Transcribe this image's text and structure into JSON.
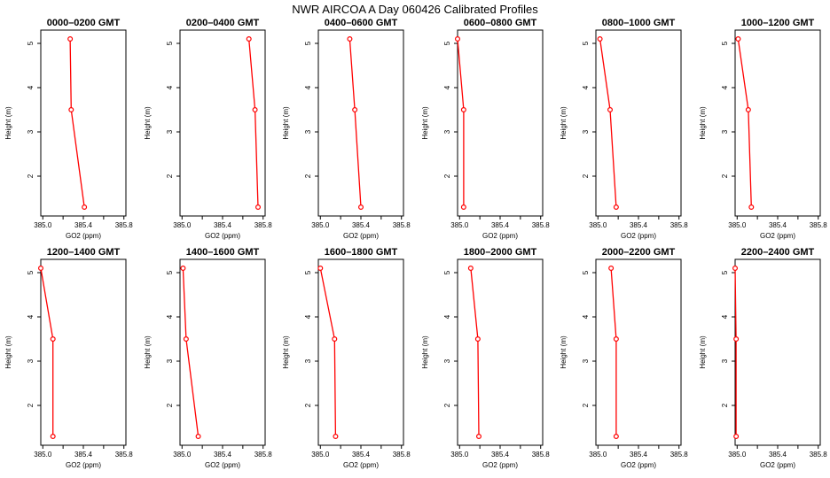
{
  "figure": {
    "title": "NWR AIRCOA A  Day 060426  Calibrated Profiles"
  },
  "chart_data": [
    {
      "type": "line",
      "title": "0000–0200 GMT",
      "xlabel": "GO2 (ppm)",
      "ylabel": "Height (m)",
      "xlim": [
        384.98,
        385.82
      ],
      "ylim": [
        1.1,
        5.3
      ],
      "xticks": [
        "385.0",
        "385.4",
        "385.8"
      ],
      "yticks": [
        "2",
        "3",
        "4",
        "5"
      ],
      "x": [
        385.41,
        385.28,
        385.27
      ],
      "y": [
        1.3,
        3.5,
        5.1
      ]
    },
    {
      "type": "line",
      "title": "0200–0400 GMT",
      "xlabel": "GO2 (ppm)",
      "ylabel": "Height (m)",
      "xlim": [
        384.98,
        385.82
      ],
      "ylim": [
        1.1,
        5.3
      ],
      "xticks": [
        "385.0",
        "385.4",
        "385.8"
      ],
      "yticks": [
        "2",
        "3",
        "4",
        "5"
      ],
      "x": [
        385.75,
        385.72,
        385.66
      ],
      "y": [
        1.3,
        3.5,
        5.1
      ]
    },
    {
      "type": "line",
      "title": "0400–0600 GMT",
      "xlabel": "GO2 (ppm)",
      "ylabel": "Height (m)",
      "xlim": [
        384.98,
        385.82
      ],
      "ylim": [
        1.1,
        5.3
      ],
      "xticks": [
        "385.0",
        "385.4",
        "385.8"
      ],
      "yticks": [
        "2",
        "3",
        "4",
        "5"
      ],
      "x": [
        385.4,
        385.34,
        385.29
      ],
      "y": [
        1.3,
        3.5,
        5.1
      ]
    },
    {
      "type": "line",
      "title": "0600–0800 GMT",
      "xlabel": "GO2 (ppm)",
      "ylabel": "Height (m)",
      "xlim": [
        384.98,
        385.82
      ],
      "ylim": [
        1.1,
        5.3
      ],
      "xticks": [
        "385.0",
        "385.4",
        "385.8"
      ],
      "yticks": [
        "2",
        "3",
        "4",
        "5"
      ],
      "x": [
        385.04,
        385.04,
        384.98
      ],
      "y": [
        1.3,
        3.5,
        5.1
      ]
    },
    {
      "type": "line",
      "title": "0800–1000 GMT",
      "xlabel": "GO2 (ppm)",
      "ylabel": "Height (m)",
      "xlim": [
        384.98,
        385.82
      ],
      "ylim": [
        1.1,
        5.3
      ],
      "xticks": [
        "385.0",
        "385.4",
        "385.8"
      ],
      "yticks": [
        "2",
        "3",
        "4",
        "5"
      ],
      "x": [
        385.18,
        385.12,
        385.02
      ],
      "y": [
        1.3,
        3.5,
        5.1
      ]
    },
    {
      "type": "line",
      "title": "1000–1200 GMT",
      "xlabel": "GO2 (ppm)",
      "ylabel": "Height (m)",
      "xlim": [
        384.98,
        385.82
      ],
      "ylim": [
        1.1,
        5.3
      ],
      "xticks": [
        "385.0",
        "385.4",
        "385.8"
      ],
      "yticks": [
        "2",
        "3",
        "4",
        "5"
      ],
      "x": [
        385.14,
        385.11,
        385.01
      ],
      "y": [
        1.3,
        3.5,
        5.1
      ]
    },
    {
      "type": "line",
      "title": "1200–1400 GMT",
      "xlabel": "GO2 (ppm)",
      "ylabel": "Height (m)",
      "xlim": [
        384.98,
        385.82
      ],
      "ylim": [
        1.1,
        5.3
      ],
      "xticks": [
        "385.0",
        "385.4",
        "385.8"
      ],
      "yticks": [
        "2",
        "3",
        "4",
        "5"
      ],
      "x": [
        385.1,
        385.1,
        384.98
      ],
      "y": [
        1.3,
        3.5,
        5.1
      ]
    },
    {
      "type": "line",
      "title": "1400–1600 GMT",
      "xlabel": "GO2 (ppm)",
      "ylabel": "Height (m)",
      "xlim": [
        384.98,
        385.82
      ],
      "ylim": [
        1.1,
        5.3
      ],
      "xticks": [
        "385.0",
        "385.4",
        "385.8"
      ],
      "yticks": [
        "2",
        "3",
        "4",
        "5"
      ],
      "x": [
        385.16,
        385.04,
        385.01
      ],
      "y": [
        1.3,
        3.5,
        5.1
      ]
    },
    {
      "type": "line",
      "title": "1600–1800 GMT",
      "xlabel": "GO2 (ppm)",
      "ylabel": "Height (m)",
      "xlim": [
        384.98,
        385.82
      ],
      "ylim": [
        1.1,
        5.3
      ],
      "xticks": [
        "385.0",
        "385.4",
        "385.8"
      ],
      "yticks": [
        "2",
        "3",
        "4",
        "5"
      ],
      "x": [
        385.15,
        385.14,
        385.0
      ],
      "y": [
        1.3,
        3.5,
        5.1
      ]
    },
    {
      "type": "line",
      "title": "1800–2000 GMT",
      "xlabel": "GO2 (ppm)",
      "ylabel": "Height (m)",
      "xlim": [
        384.98,
        385.82
      ],
      "ylim": [
        1.1,
        5.3
      ],
      "xticks": [
        "385.0",
        "385.4",
        "385.8"
      ],
      "yticks": [
        "2",
        "3",
        "4",
        "5"
      ],
      "x": [
        385.19,
        385.18,
        385.11
      ],
      "y": [
        1.3,
        3.5,
        5.1
      ]
    },
    {
      "type": "line",
      "title": "2000–2200 GMT",
      "xlabel": "GO2 (ppm)",
      "ylabel": "Height (m)",
      "xlim": [
        384.98,
        385.82
      ],
      "ylim": [
        1.1,
        5.3
      ],
      "xticks": [
        "385.0",
        "385.4",
        "385.8"
      ],
      "yticks": [
        "2",
        "3",
        "4",
        "5"
      ],
      "x": [
        385.18,
        385.18,
        385.13
      ],
      "y": [
        1.3,
        3.5,
        5.1
      ]
    },
    {
      "type": "line",
      "title": "2200–2400 GMT",
      "xlabel": "GO2 (ppm)",
      "ylabel": "Height (m)",
      "xlim": [
        384.98,
        385.82
      ],
      "ylim": [
        1.1,
        5.3
      ],
      "xticks": [
        "385.0",
        "385.4",
        "385.8"
      ],
      "yticks": [
        "2",
        "3",
        "4",
        "5"
      ],
      "x": [
        384.99,
        384.99,
        384.98
      ],
      "y": [
        1.3,
        3.5,
        5.1
      ]
    }
  ],
  "colors": {
    "series": "#ff0000",
    "axes": "#000000",
    "background": "#ffffff"
  }
}
